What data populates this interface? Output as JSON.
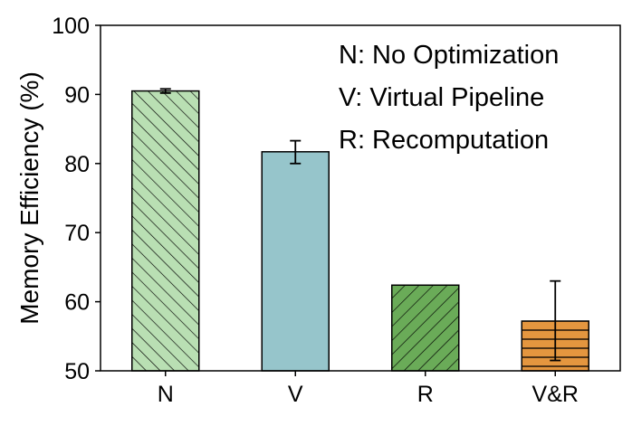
{
  "chart_data": {
    "type": "bar",
    "title": "",
    "xlabel": "",
    "ylabel": "Memory Efficiency (%)",
    "ylim": [
      50,
      100
    ],
    "yticks": [
      50,
      60,
      70,
      80,
      90,
      100
    ],
    "grid": false,
    "categories": [
      "N",
      "V",
      "R",
      "V&R"
    ],
    "values": [
      90.5,
      81.7,
      62.4,
      57.2
    ],
    "error_low": [
      90.2,
      80.0,
      62.4,
      51.5
    ],
    "error_high": [
      90.8,
      83.3,
      62.4,
      63.0
    ],
    "colors": [
      "#b9dfb3",
      "#96c5cb",
      "#6aab58",
      "#e4963f"
    ],
    "hatches": [
      "diagonal-back",
      "none",
      "diagonal-forward",
      "horizontal"
    ],
    "legend_position": "top-right",
    "legend": [
      "N: No Optimization",
      "V: Virtual Pipeline",
      "R: Recomputation"
    ]
  }
}
